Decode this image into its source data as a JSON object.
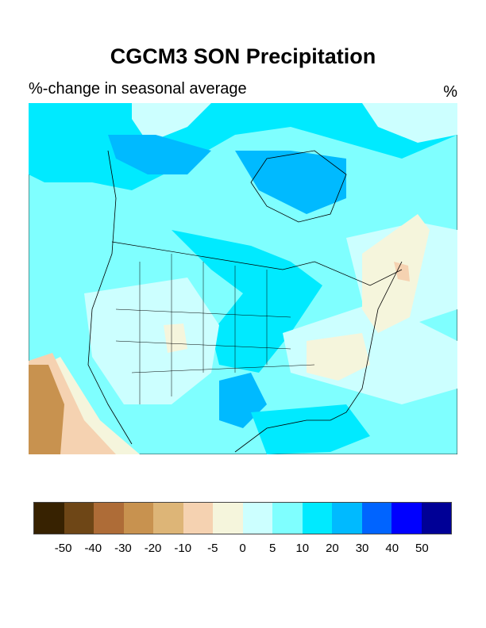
{
  "title": "CGCM3 SON Precipitation",
  "subtitle": "%-change in seasonal average",
  "units": "%",
  "colorbar": {
    "colors": [
      "#372201",
      "#6e4616",
      "#ae6c37",
      "#c8924f",
      "#ddb577",
      "#f5d2b1",
      "#f5f5dc",
      "#ccffff",
      "#7fffff",
      "#00eaff",
      "#00baff",
      "#0064ff",
      "#0000ff",
      "#000096"
    ],
    "labels": [
      "-50",
      "-40",
      "-30",
      "-20",
      "-10",
      "-5",
      "0",
      "5",
      "10",
      "20",
      "30",
      "40",
      "50"
    ]
  }
}
